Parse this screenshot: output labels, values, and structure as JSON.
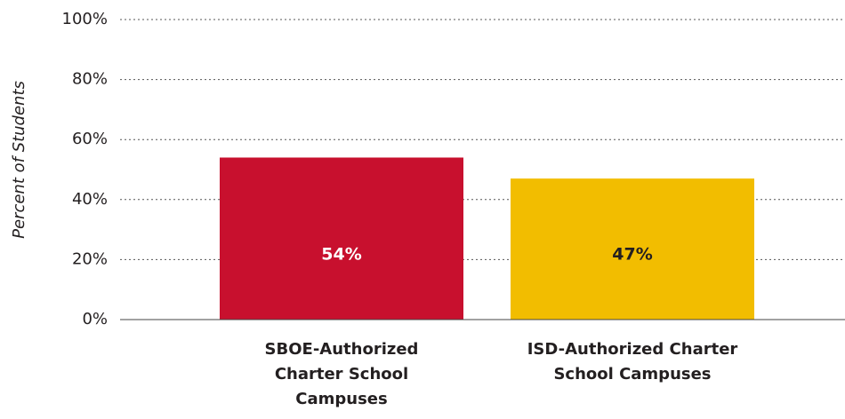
{
  "chart_data": {
    "type": "bar",
    "y_label": "Percent of Students",
    "categories": [
      "SBOE-Authorized Charter School Campuses",
      "ISD-Authorized Charter School Campuses"
    ],
    "values": [
      54,
      47
    ],
    "value_labels": [
      "54%",
      "47%"
    ],
    "colors": [
      "#c8102e",
      "#f2bd00"
    ],
    "value_label_colors": [
      "#ffffff",
      "#231f20"
    ],
    "ylim": [
      0,
      100
    ],
    "yticks": [
      {
        "value": 0,
        "label": "0%"
      },
      {
        "value": 20,
        "label": "20%"
      },
      {
        "value": 40,
        "label": "40%"
      },
      {
        "value": 60,
        "label": "60%"
      },
      {
        "value": 80,
        "label": "80%"
      },
      {
        "value": 100,
        "label": "100%"
      }
    ],
    "grid": true
  }
}
